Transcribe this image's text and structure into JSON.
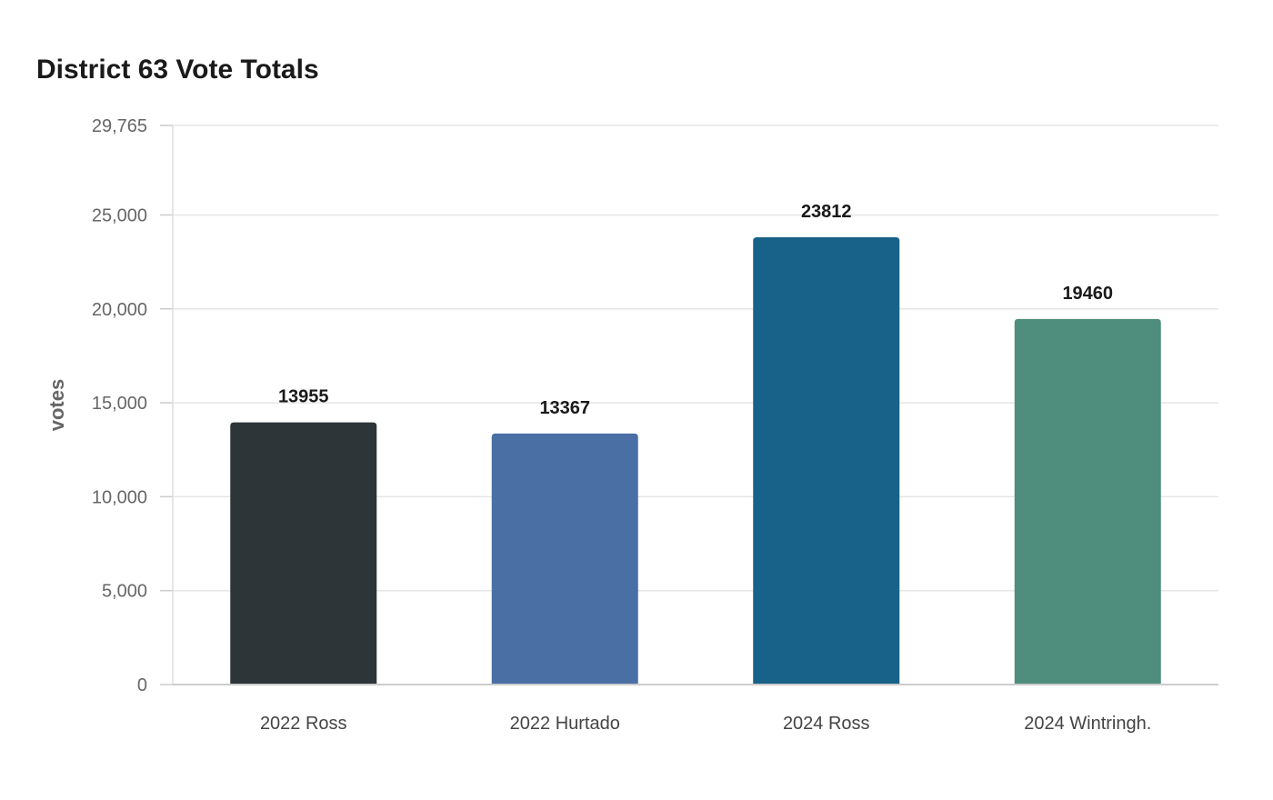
{
  "chart_data": {
    "type": "bar",
    "title": "District 63 Vote Totals",
    "ylabel": "votes",
    "xlabel": "",
    "categories": [
      "2022 Ross",
      "2022 Hurtado",
      "2024 Ross",
      "2024 Wintringh."
    ],
    "values": [
      13955,
      13367,
      23812,
      19460
    ],
    "colors": [
      "#2d3538",
      "#4a6fa5",
      "#186188",
      "#4f8d7c"
    ],
    "ylim": [
      0,
      29765
    ],
    "yticks": [
      0,
      5000,
      10000,
      15000,
      20000,
      25000,
      29765
    ],
    "ytick_labels": [
      "0",
      "5,000",
      "10,000",
      "15,000",
      "20,000",
      "25,000",
      "29,765"
    ],
    "value_labels": [
      "13955",
      "13367",
      "23812",
      "19460"
    ],
    "grid": true,
    "legend": false
  }
}
